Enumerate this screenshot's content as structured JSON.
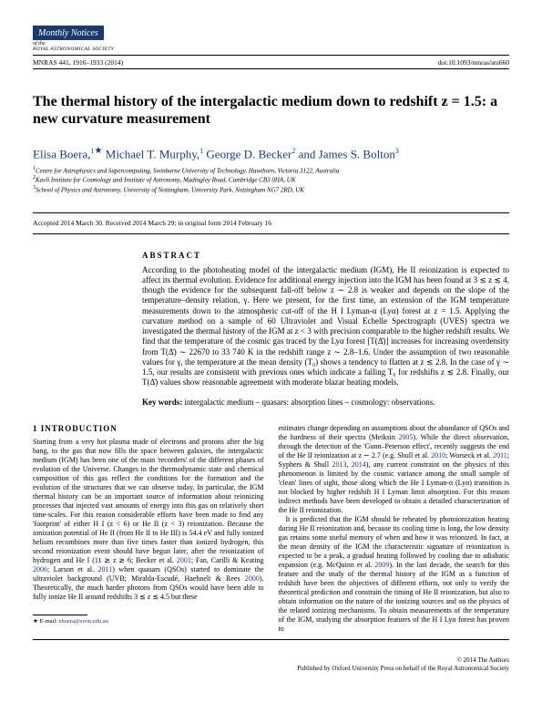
{
  "masthead": {
    "title": "Monthly Notices",
    "sub1": "of the",
    "sub2": "ROYAL ASTRONOMICAL SOCIETY"
  },
  "meta": {
    "left": "MNRAS 441, 1916–1933 (2014)",
    "right": "doi:10.1093/mnras/stu660"
  },
  "title": "The thermal history of the intergalactic medium down to redshift z = 1.5: a new curvature measurement",
  "authors": {
    "a1": {
      "name": "Elisa Boera,",
      "sup": "1",
      "star": "★"
    },
    "a2": {
      "name": "Michael T. Murphy,",
      "sup": "1"
    },
    "a3": {
      "name": "George D. Becker",
      "sup": "2"
    },
    "a4_pre": " and ",
    "a4": {
      "name": "James S. Bolton",
      "sup": "3"
    }
  },
  "affils": {
    "l1": "Centre for Astrophysics and Supercomputing, Swinburne University of Technology, Hawthorn, Victoria 3122, Australia",
    "l2": "Kavli Institute for Cosmology and Institute of Astronomy, Madingley Road, Cambridge CB3 0HA, UK",
    "l3": "School of Physics and Astronomy, University of Nottingham, University Park, Nottingham NG7 2RD, UK"
  },
  "dates": "Accepted 2014 March 30. Received 2014 March 29; in original form 2014 February 16",
  "abstract": {
    "head": "ABSTRACT",
    "text": "According to the photoheating model of the intergalactic medium (IGM), He II reionization is expected to affect its thermal evolution. Evidence for additional energy injection into the IGM has been found at 3 ≲ z ≲ 4, though the evidence for the subsequent fall-off below z ∼ 2.8 is weaker and depends on the slope of the temperature–density relation, γ. Here we present, for the first time, an extension of the IGM temperature measurements down to the atmospheric cut-off of the H I Lyman-α (Lyα) forest at z = 1.5. Applying the curvature method on a sample of 60 Ultraviolet and Visual Echelle Spectrograph (UVES) spectra we investigated the thermal history of the IGM at z < 3 with precision comparable to the higher redshift results. We find that the temperature of the cosmic gas traced by the Lyα forest [T(Δ̄)] increases for increasing overdensity from T(Δ̄) ∼ 22670 to 33 740 K in the redshift range z ∼ 2.8–1.6. Under the assumption of two reasonable values for γ, the temperature at the mean density (T₀) shows a tendency to flatten at z ≲ 2.8. In the case of γ ∼ 1.5, our results are consistent with previous ones which indicate a falling T₀ for redshifts z ≲ 2.8. Finally, our T(Δ̄) values show reasonable agreement with moderate blazar heating models.",
    "kw_label": "Key words:",
    "kw_text": " intergalactic medium – quasars: absorption lines – cosmology: observations."
  },
  "sec1": {
    "head": "1 INTRODUCTION",
    "p1": "Starting from a very hot plasma made of electrons and protons after the big bang, to the gas that now fills the space between galaxies, the intergalactic medium (IGM) has been one of the main 'recorders' of the different phases of evolution of the Universe. Changes in the thermodynamic state and chemical composition of this gas reflect the conditions for the formation and the evolution of the structures that we can observe today. In particular, the IGM thermal history can be an important source of information about reionizing processes that injected vast amounts of energy into this gas on relatively short time-scales. For this reason considerable efforts have been made to find any 'footprint' of either H I (z < 6) or He II (z < 3) reionization. Because the ionization potential of He II (from He II to He III) is 54.4 eV and fully ionized helium recombines more than five times faster than ionized hydrogen, this second reionization event should have begun later, after the reionization of hydrogen and He I (11 ≳ z ≳ 6; Becker et al. ",
    "r1": "2001",
    "p1b": "; Fan, Carilli & Keating ",
    "r2": "2006",
    "p1c": "; Larson et al. ",
    "r3": "2011",
    "p1d": ") when quasars (QSOs) started to dominate the ultraviolet background (UVB; Miralda-Escudé, Haehnelt & Rees ",
    "r4": "2000",
    "p1e": "). Theoretically, the much harder photons from QSOs would have been able to fully ionize He II around redshifts 3 ≲ z ≲ 4.5 but these",
    "p2a": "estimates change depending on assumptions about the abundance of QSOs and the hardness of their spectra (Meiksin ",
    "r5": "2005",
    "p2b": "). While the direct observation, through the detection of the 'Gunn–Peterson effect', recently suggests the end of the He II reionization at z ∼ 2.7 (e.g. Shull et al. ",
    "r6": "2010",
    "p2c": "; Worseck et al. ",
    "r7": "2011",
    "p2d": "; Syphers & Shull ",
    "r8": "2013",
    "p2e": ", ",
    "r9": "2014",
    "p2f": "), any current constraint on the physics of this phenomenon is limited by the cosmic variance among the small sample of 'clean' lines of sight, those along which the He I Lyman-α (Lyα) transition is not blocked by higher redshift H I Lyman limit absorption. For this reason indirect methods have been developed to obtain a detailed characterization of the He II reionization.",
    "p3a": "It is predicted that the IGM should be reheated by photoionization heating during He II reionization and, because its cooling time is long, the low density gas retains some useful memory of when and how it was reionized. In fact, at the mean density of the IGM the characteristic signature of reionization is expected to be a peak, a gradual heating followed by cooling due to adiabatic expansion (e.g. McQuinn et al. ",
    "r10": "2009",
    "p3b": "). In the last decade, the search for this feature and the study of the thermal history of the IGM as a function of redshift have been the objectives of different efforts, not only to verify the theoretical prediction and constrain the timing of He II reionization, but also to obtain information on the nature of the ionizing sources and on the physics of the related ionizing mechanisms. To obtain measurements of the temperature of the IGM, studying the absorption features of the H I Lyα forest has proven to"
  },
  "footnote": {
    "star": "★",
    "label": " E-mail: ",
    "email": "eboera@swin.edu.au"
  },
  "bottom": {
    "left": "",
    "right1": "© 2014 The Authors",
    "right2": "Published by Oxford University Press on behalf of the Royal Astronomical Society"
  }
}
